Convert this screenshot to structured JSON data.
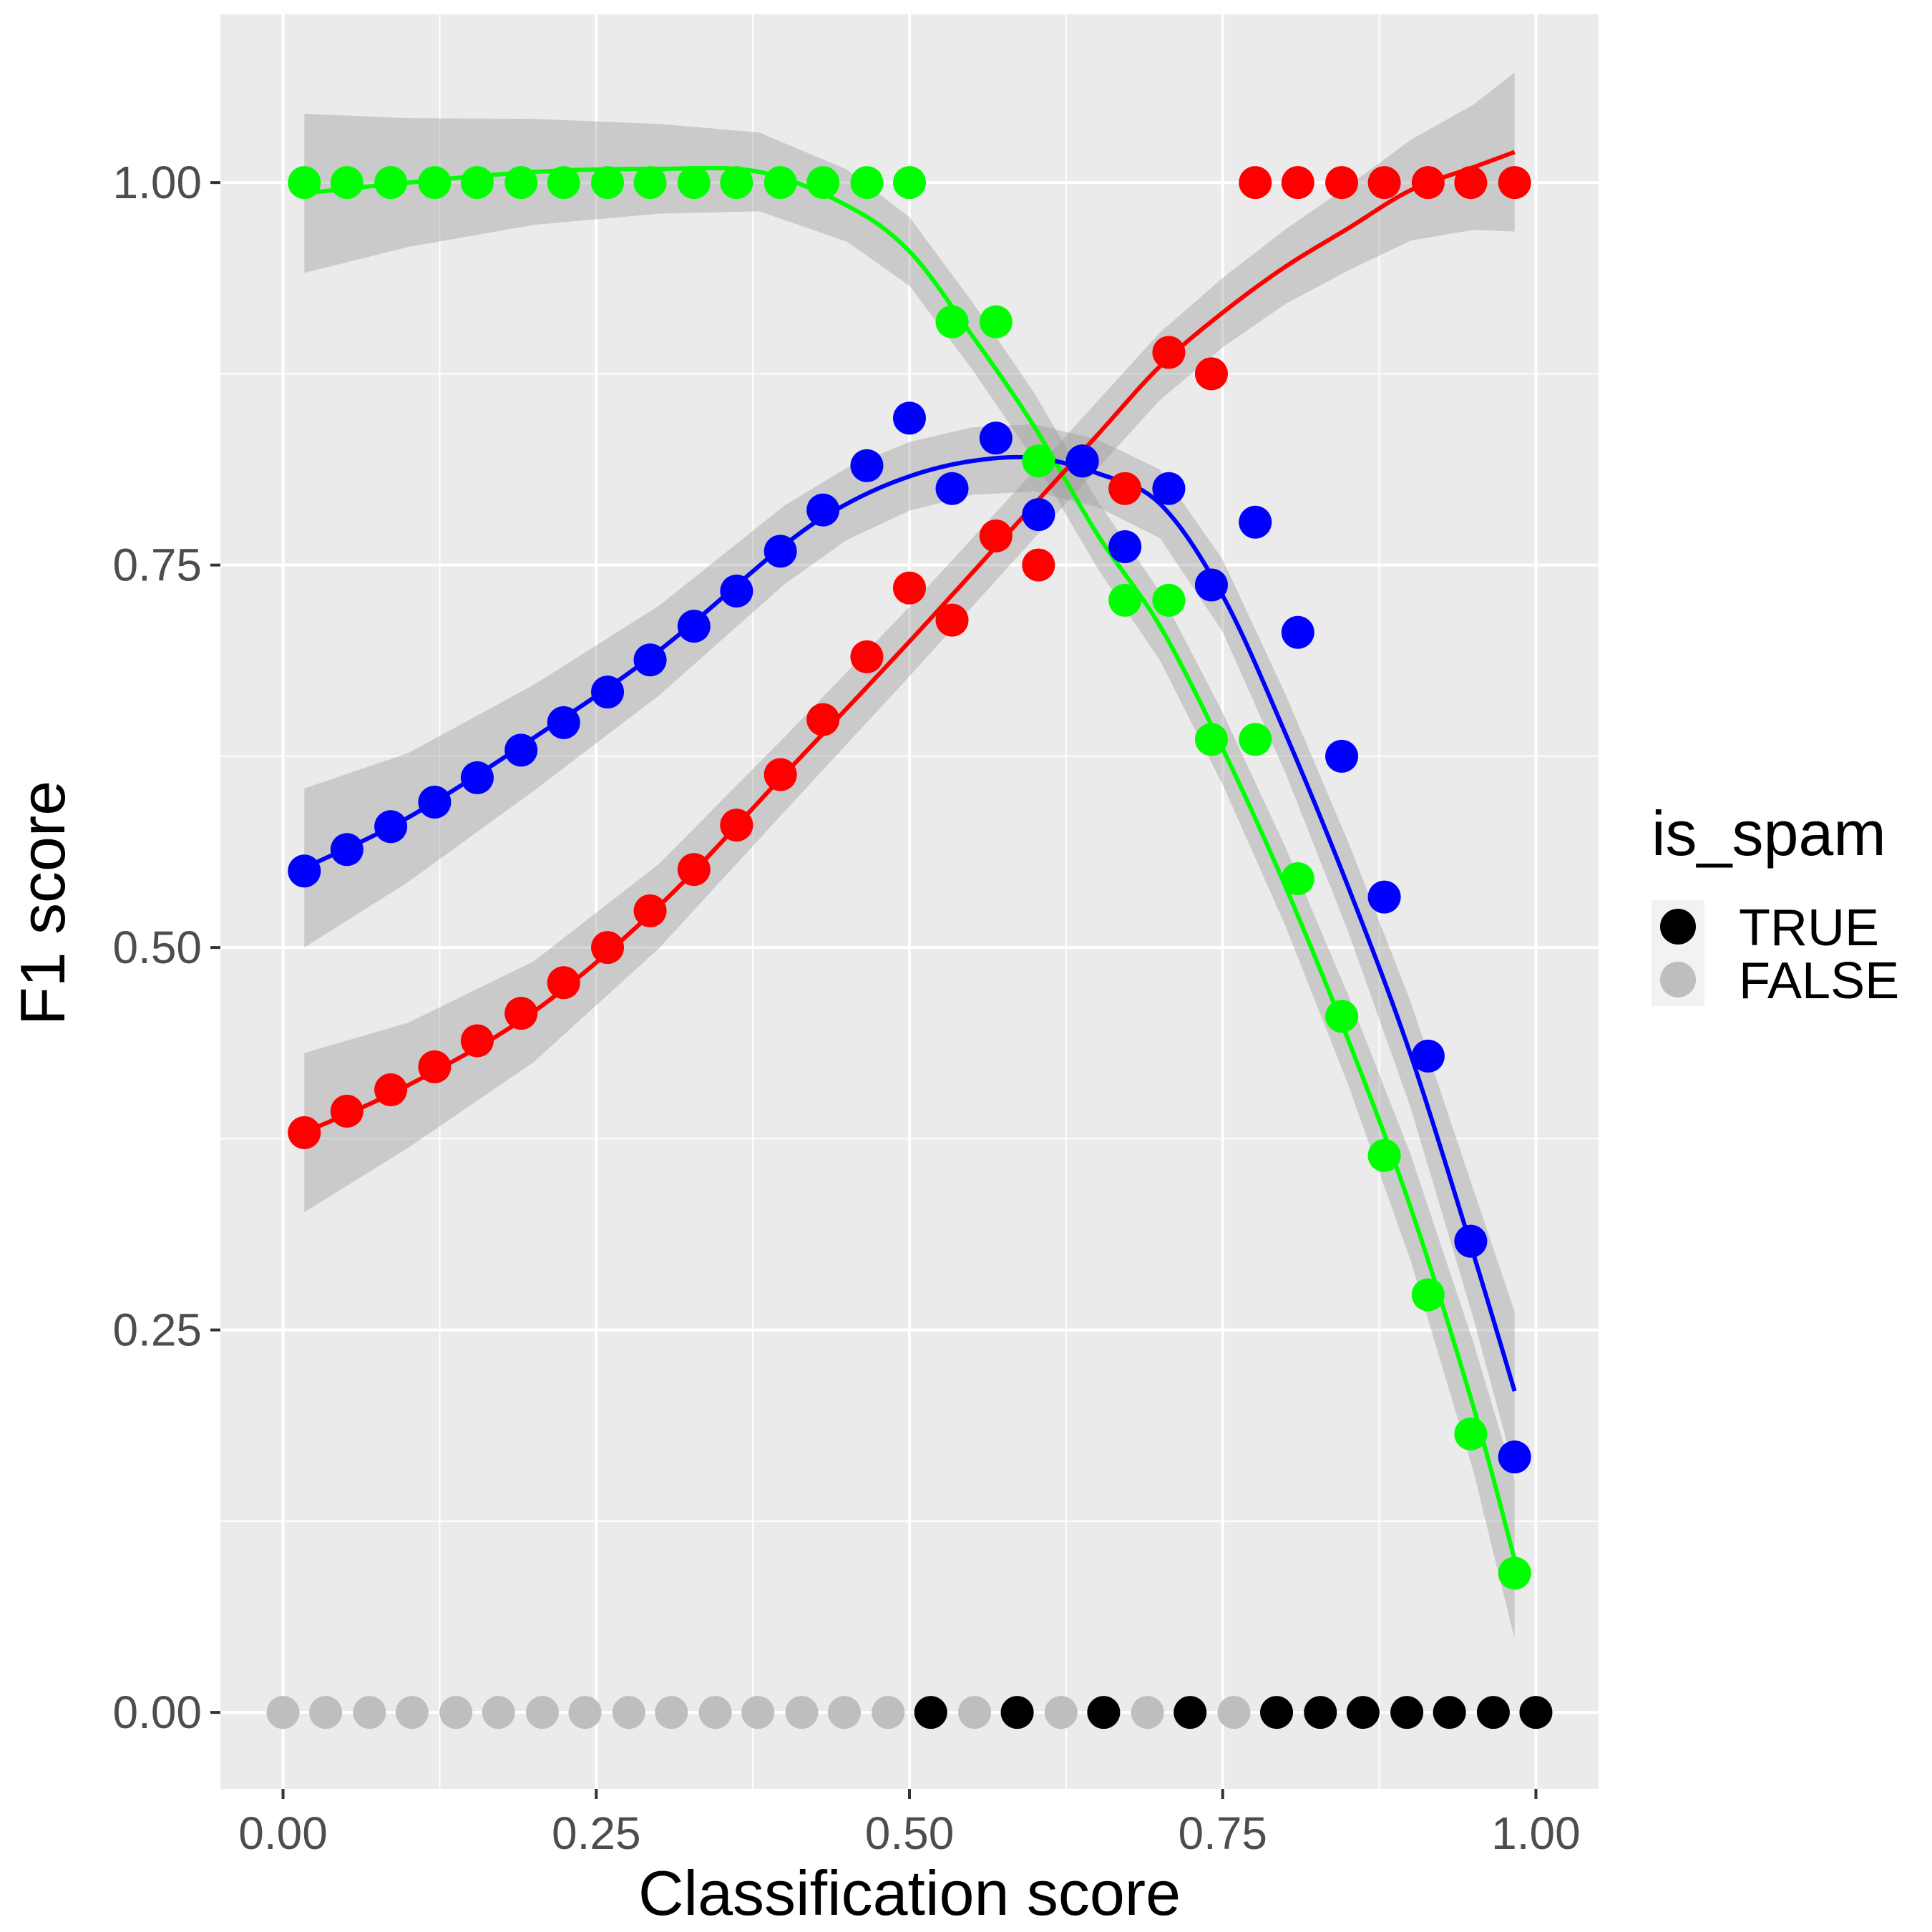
{
  "chart_data": {
    "type": "scatter",
    "xlabel": "Classification score",
    "ylabel": "F1 score",
    "xlim": [
      -0.05,
      1.05
    ],
    "ylim": [
      -0.05,
      1.11
    ],
    "x_ticks": [
      "0.00",
      "0.25",
      "0.50",
      "0.75",
      "1.00"
    ],
    "y_ticks": [
      "0.00",
      "0.25",
      "0.50",
      "0.75",
      "1.00"
    ],
    "grid": true,
    "background": "#ebebeb",
    "legend": {
      "title": "is_spam",
      "position": "right",
      "entries": [
        {
          "label": "TRUE",
          "color": "#000000"
        },
        {
          "label": "FALSE",
          "color": "#bebebe"
        }
      ]
    },
    "series": [
      {
        "color": "#00ff00",
        "x": [
          0.017,
          0.051,
          0.086,
          0.121,
          0.155,
          0.19,
          0.224,
          0.259,
          0.293,
          0.328,
          0.362,
          0.397,
          0.431,
          0.466,
          0.5,
          0.534,
          0.569,
          0.603,
          0.638,
          0.672,
          0.707,
          0.741,
          0.776,
          0.81,
          0.845,
          0.879,
          0.914,
          0.948,
          0.983
        ],
        "y": [
          1.0,
          1.0,
          1.0,
          1.0,
          1.0,
          1.0,
          1.0,
          1.0,
          1.0,
          1.0,
          1.0,
          1.0,
          1.0,
          1.0,
          1.0,
          0.909,
          0.909,
          0.818,
          0.818,
          0.727,
          0.727,
          0.636,
          0.636,
          0.545,
          0.455,
          0.364,
          0.273,
          0.182,
          0.091
        ],
        "smooth": [
          [
            0.017,
            0.993
          ],
          [
            0.1,
            1.0
          ],
          [
            0.2,
            1.007
          ],
          [
            0.3,
            1.009
          ],
          [
            0.38,
            1.007
          ],
          [
            0.45,
            0.985
          ],
          [
            0.5,
            0.955
          ],
          [
            0.55,
            0.9
          ],
          [
            0.6,
            0.84
          ],
          [
            0.65,
            0.77
          ],
          [
            0.7,
            0.71
          ],
          [
            0.75,
            0.63
          ],
          [
            0.8,
            0.54
          ],
          [
            0.85,
            0.44
          ],
          [
            0.9,
            0.33
          ],
          [
            0.95,
            0.2
          ],
          [
            0.983,
            0.1
          ]
        ]
      },
      {
        "color": "#ff0000",
        "x": [
          0.017,
          0.051,
          0.086,
          0.121,
          0.155,
          0.19,
          0.224,
          0.259,
          0.293,
          0.328,
          0.362,
          0.397,
          0.431,
          0.466,
          0.5,
          0.534,
          0.569,
          0.603,
          0.638,
          0.672,
          0.707,
          0.741,
          0.776,
          0.81,
          0.845,
          0.879,
          0.914,
          0.948,
          0.983
        ],
        "y": [
          0.379,
          0.393,
          0.407,
          0.422,
          0.439,
          0.457,
          0.477,
          0.5,
          0.524,
          0.551,
          0.58,
          0.613,
          0.649,
          0.69,
          0.735,
          0.714,
          0.769,
          0.75,
          0.818,
          0.8,
          0.889,
          0.875,
          1.0,
          1.0,
          1.0,
          1.0,
          1.0,
          1.0,
          1.0
        ],
        "smooth": [
          [
            0.017,
            0.379
          ],
          [
            0.1,
            0.41
          ],
          [
            0.2,
            0.458
          ],
          [
            0.3,
            0.527
          ],
          [
            0.4,
            0.613
          ],
          [
            0.5,
            0.7
          ],
          [
            0.6,
            0.79
          ],
          [
            0.65,
            0.835
          ],
          [
            0.7,
            0.88
          ],
          [
            0.75,
            0.915
          ],
          [
            0.8,
            0.945
          ],
          [
            0.85,
            0.97
          ],
          [
            0.9,
            0.995
          ],
          [
            0.95,
            1.01
          ],
          [
            0.983,
            1.02
          ]
        ]
      },
      {
        "color": "#0000ff",
        "x": [
          0.017,
          0.051,
          0.086,
          0.121,
          0.155,
          0.19,
          0.224,
          0.259,
          0.293,
          0.328,
          0.362,
          0.397,
          0.431,
          0.466,
          0.5,
          0.534,
          0.569,
          0.603,
          0.638,
          0.672,
          0.707,
          0.741,
          0.776,
          0.81,
          0.845,
          0.879,
          0.914,
          0.948,
          0.983
        ],
        "y": [
          0.55,
          0.564,
          0.579,
          0.595,
          0.611,
          0.629,
          0.647,
          0.667,
          0.688,
          0.71,
          0.733,
          0.759,
          0.786,
          0.815,
          0.846,
          0.8,
          0.833,
          0.783,
          0.818,
          0.762,
          0.8,
          0.737,
          0.778,
          0.706,
          0.625,
          0.533,
          0.429,
          0.308,
          0.167
        ],
        "smooth": [
          [
            0.017,
            0.552
          ],
          [
            0.1,
            0.585
          ],
          [
            0.2,
            0.637
          ],
          [
            0.3,
            0.694
          ],
          [
            0.4,
            0.763
          ],
          [
            0.45,
            0.79
          ],
          [
            0.5,
            0.808
          ],
          [
            0.55,
            0.818
          ],
          [
            0.6,
            0.82
          ],
          [
            0.65,
            0.81
          ],
          [
            0.7,
            0.79
          ],
          [
            0.75,
            0.73
          ],
          [
            0.8,
            0.64
          ],
          [
            0.85,
            0.54
          ],
          [
            0.9,
            0.43
          ],
          [
            0.95,
            0.3
          ],
          [
            0.983,
            0.21
          ]
        ]
      }
    ],
    "baseline_points": {
      "y": 0.0,
      "x": [
        0.0,
        0.034,
        0.069,
        0.103,
        0.138,
        0.172,
        0.207,
        0.241,
        0.276,
        0.31,
        0.345,
        0.379,
        0.414,
        0.448,
        0.483,
        0.517,
        0.552,
        0.586,
        0.621,
        0.655,
        0.69,
        0.724,
        0.759,
        0.793,
        0.828,
        0.862,
        0.897,
        0.931,
        0.966,
        1.0
      ],
      "is_spam": [
        false,
        false,
        false,
        false,
        false,
        false,
        false,
        false,
        false,
        false,
        false,
        false,
        false,
        false,
        false,
        true,
        false,
        true,
        false,
        true,
        false,
        true,
        false,
        true,
        true,
        true,
        true,
        true,
        true,
        true
      ]
    }
  }
}
